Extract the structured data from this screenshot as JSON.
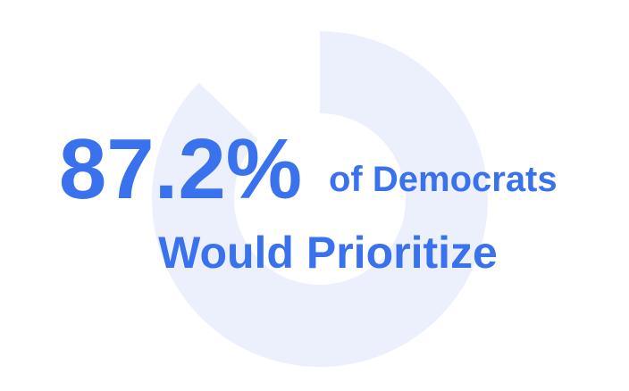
{
  "chart_data": {
    "type": "donut",
    "values": [
      87.2
    ],
    "value_labels": [
      "87.2%"
    ],
    "color": "#ebf0fc",
    "text_color": "#3a72ee",
    "annotations": [
      "of Democrats",
      "Would Prioritize"
    ]
  }
}
